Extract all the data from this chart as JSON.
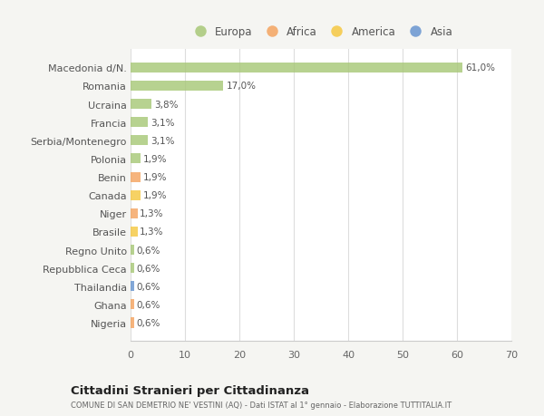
{
  "categories": [
    "Nigeria",
    "Ghana",
    "Thailandia",
    "Repubblica Ceca",
    "Regno Unito",
    "Brasile",
    "Niger",
    "Canada",
    "Benin",
    "Polonia",
    "Serbia/Montenegro",
    "Francia",
    "Ucraina",
    "Romania",
    "Macedonia d/N."
  ],
  "values": [
    0.6,
    0.6,
    0.6,
    0.6,
    0.6,
    1.3,
    1.3,
    1.9,
    1.9,
    1.9,
    3.1,
    3.1,
    3.8,
    17.0,
    61.0
  ],
  "colors": [
    "#F4A460",
    "#F4A460",
    "#6895D0",
    "#A8C878",
    "#A8C878",
    "#F5C842",
    "#F4A460",
    "#F5C842",
    "#F4A460",
    "#A8C878",
    "#A8C878",
    "#A8C878",
    "#A8C878",
    "#A8C878",
    "#A8C878"
  ],
  "labels": [
    "0,6%",
    "0,6%",
    "0,6%",
    "0,6%",
    "0,6%",
    "1,3%",
    "1,3%",
    "1,9%",
    "1,9%",
    "1,9%",
    "3,1%",
    "3,1%",
    "3,8%",
    "17,0%",
    "61,0%"
  ],
  "legend": [
    {
      "label": "Europa",
      "color": "#A8C878"
    },
    {
      "label": "Africa",
      "color": "#F4A460"
    },
    {
      "label": "America",
      "color": "#F5C842"
    },
    {
      "label": "Asia",
      "color": "#6895D0"
    }
  ],
  "xlim": [
    0,
    70
  ],
  "xticks": [
    0,
    10,
    20,
    30,
    40,
    50,
    60,
    70
  ],
  "title": "Cittadini Stranieri per Cittadinanza",
  "subtitle": "COMUNE DI SAN DEMETRIO NE' VESTINI (AQ) - Dati ISTAT al 1° gennaio - Elaborazione TUTTITALIA.IT",
  "background_color": "#f5f5f2",
  "bar_background": "#ffffff",
  "grid_color": "#dddddd",
  "bar_height": 0.55
}
